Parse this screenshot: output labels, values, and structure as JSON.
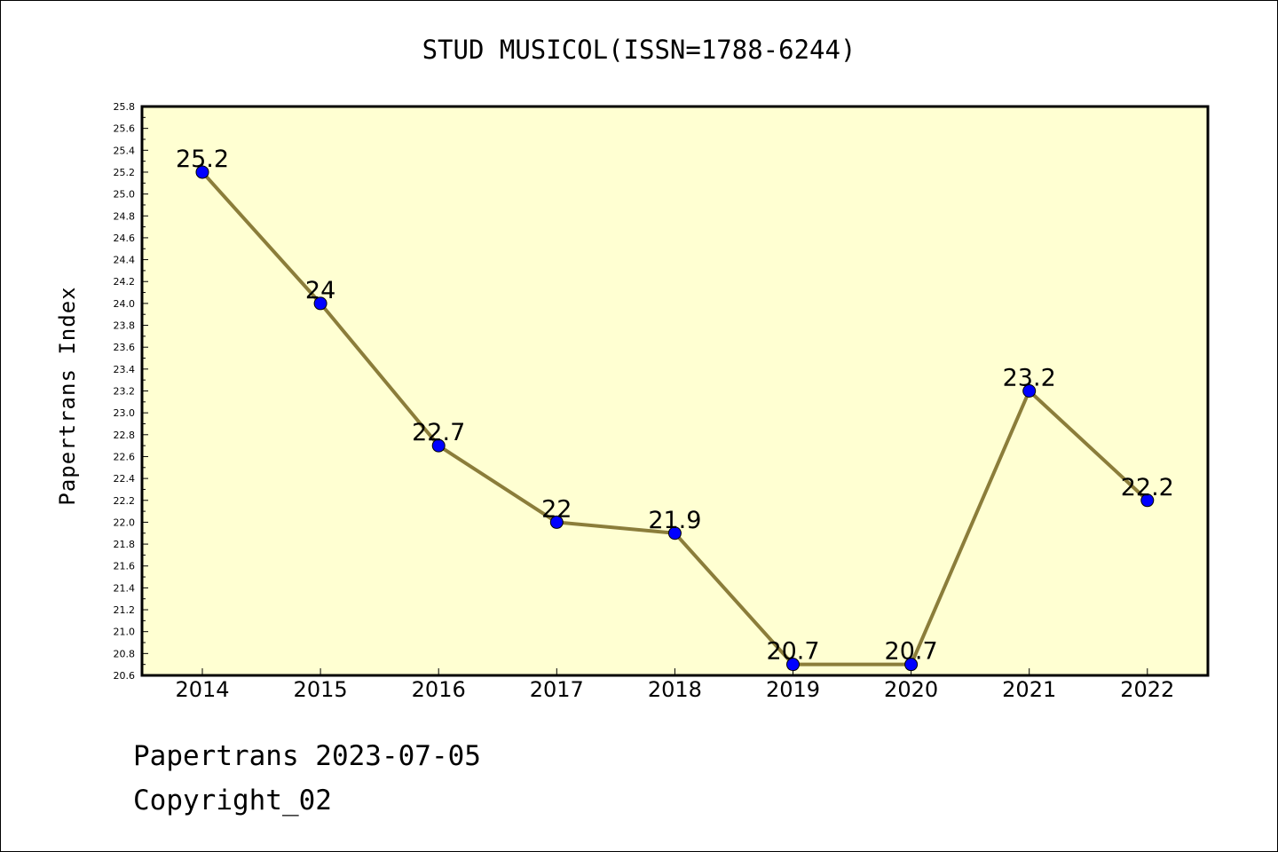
{
  "chart_data": {
    "type": "line",
    "title": "STUD MUSICOL(ISSN=1788-6244)",
    "xlabel": "",
    "ylabel": "Papertrans Index",
    "categories": [
      "2014",
      "2015",
      "2016",
      "2017",
      "2018",
      "2019",
      "2020",
      "2021",
      "2022"
    ],
    "values": [
      25.2,
      24,
      22.7,
      22,
      21.9,
      20.7,
      20.7,
      23.2,
      22.2
    ],
    "data_labels": [
      "25.2",
      "24",
      "22.7",
      "22",
      "21.9",
      "20.7",
      "20.7",
      "23.2",
      "22.2"
    ],
    "ylim": [
      20.6,
      25.8
    ],
    "yticks": [
      "20.6",
      "20.8",
      "21.0",
      "21.2",
      "21.4",
      "21.6",
      "21.8",
      "22.0",
      "22.2",
      "22.4",
      "22.6",
      "22.8",
      "23.0",
      "23.2",
      "23.4",
      "23.6",
      "23.8",
      "24.0",
      "24.2",
      "24.4",
      "24.6",
      "24.8",
      "25.0",
      "25.2",
      "25.4",
      "25.6",
      "25.8"
    ],
    "grid": false,
    "colors": {
      "plot_background": "#ffffd2",
      "line": "#8b7d3a",
      "marker": "#0000ff"
    }
  },
  "footer": {
    "date_line": "Papertrans 2023-07-05",
    "copyright_line": "Copyright_02"
  }
}
